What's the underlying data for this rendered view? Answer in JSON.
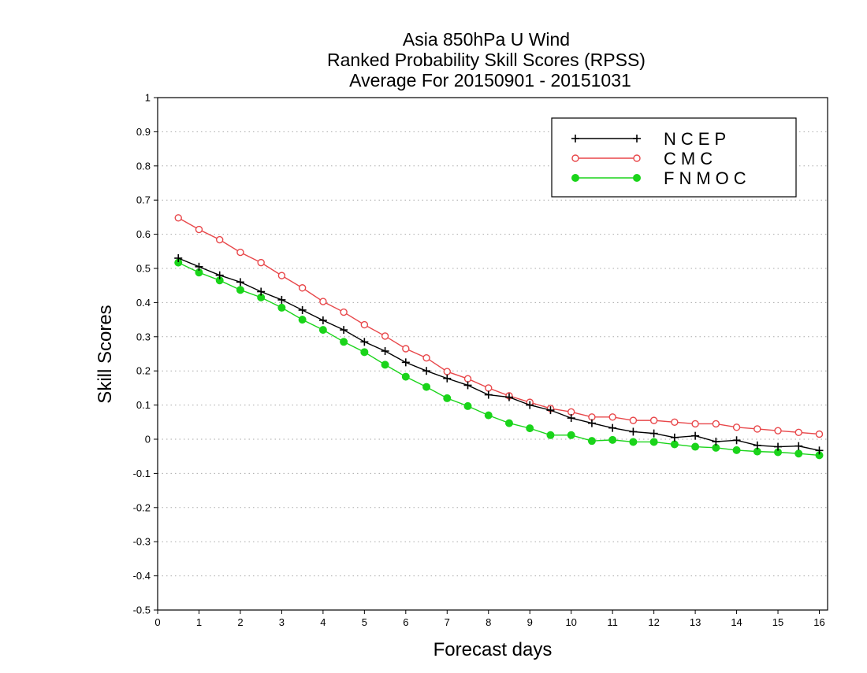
{
  "chart_data": {
    "type": "line",
    "title": [
      "Asia 850hPa U Wind",
      "Ranked Probability Skill Scores (RPSS)",
      "Average For 20150901 - 20151031"
    ],
    "xlabel": "Forecast days",
    "ylabel": "Skill Scores",
    "xlim": [
      0,
      16.2
    ],
    "ylim": [
      -0.5,
      1
    ],
    "x_ticks": [
      0,
      1,
      2,
      3,
      4,
      5,
      6,
      7,
      8,
      9,
      10,
      11,
      12,
      13,
      14,
      15,
      16
    ],
    "y_ticks": [
      -0.5,
      -0.4,
      -0.3,
      -0.2,
      -0.1,
      0,
      0.1,
      0.2,
      0.3,
      0.4,
      0.5,
      0.6,
      0.7,
      0.8,
      0.9,
      1
    ],
    "y_tick_labels": [
      "-0.5",
      "-0.4",
      "-0.3",
      "-0.2",
      "-0.1",
      "0",
      "0.1",
      "0.2",
      "0.3",
      "0.4",
      "0.5",
      "0.6",
      "0.7",
      "0.8",
      "0.9",
      "1"
    ],
    "grid": true,
    "legend_position": "top-right",
    "x": [
      0.5,
      1,
      1.5,
      2,
      2.5,
      3,
      3.5,
      4,
      4.5,
      5,
      5.5,
      6,
      6.5,
      7,
      7.5,
      8,
      8.5,
      9,
      9.5,
      10,
      10.5,
      11,
      11.5,
      12,
      12.5,
      13,
      13.5,
      14,
      14.5,
      15,
      15.5,
      16
    ],
    "series": [
      {
        "name": "NCEP",
        "color": "#000000",
        "marker": "plus",
        "values": [
          0.53,
          0.505,
          0.48,
          0.46,
          0.432,
          0.408,
          0.378,
          0.348,
          0.32,
          0.285,
          0.258,
          0.225,
          0.2,
          0.178,
          0.158,
          0.13,
          0.123,
          0.1,
          0.085,
          0.062,
          0.047,
          0.033,
          0.022,
          0.017,
          0.005,
          0.01,
          -0.007,
          -0.003,
          -0.018,
          -0.022,
          -0.02,
          -0.033
        ]
      },
      {
        "name": "CMC",
        "color": "#e8474a",
        "marker": "open-circle",
        "values": [
          0.648,
          0.614,
          0.584,
          0.547,
          0.517,
          0.479,
          0.443,
          0.403,
          0.372,
          0.335,
          0.302,
          0.265,
          0.238,
          0.198,
          0.177,
          0.15,
          0.127,
          0.108,
          0.09,
          0.08,
          0.065,
          0.065,
          0.055,
          0.055,
          0.05,
          0.045,
          0.045,
          0.035,
          0.03,
          0.025,
          0.02,
          0.015
        ]
      },
      {
        "name": "FNMOC",
        "color": "#1ad41a",
        "marker": "filled-circle",
        "values": [
          0.517,
          0.488,
          0.465,
          0.437,
          0.415,
          0.385,
          0.35,
          0.32,
          0.285,
          0.255,
          0.218,
          0.183,
          0.153,
          0.12,
          0.097,
          0.07,
          0.047,
          0.032,
          0.012,
          0.012,
          -0.005,
          -0.002,
          -0.008,
          -0.008,
          -0.015,
          -0.022,
          -0.025,
          -0.032,
          -0.036,
          -0.038,
          -0.042,
          -0.047
        ]
      }
    ]
  }
}
